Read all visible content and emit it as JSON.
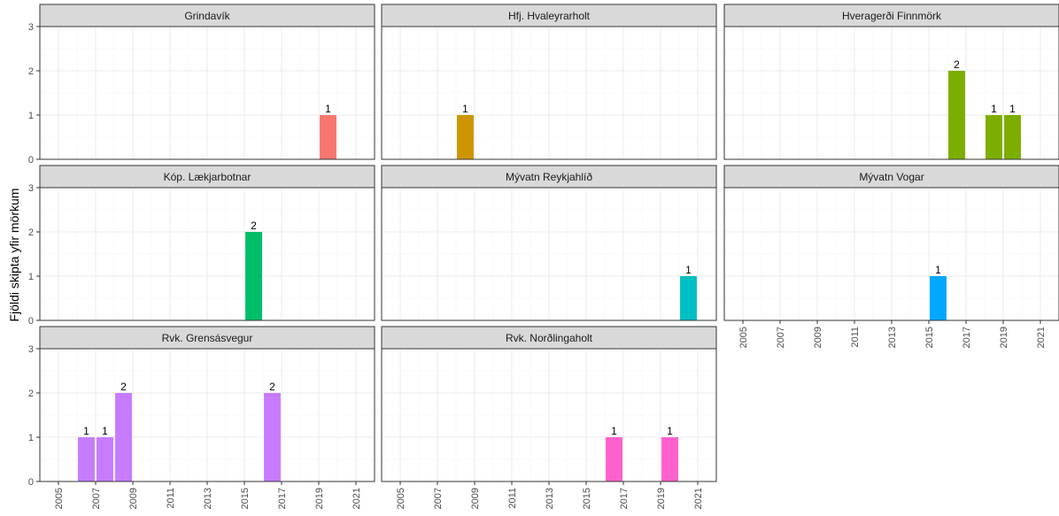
{
  "chart_data": {
    "type": "bar",
    "ylabel": "Fjöldi skipta yfir mörkum",
    "xlabel": "",
    "xlim": [
      2004,
      2022
    ],
    "ylim": [
      0,
      3
    ],
    "x_ticks": [
      "2005",
      "2007",
      "2009",
      "2011",
      "2013",
      "2015",
      "2017",
      "2019",
      "2021"
    ],
    "y_ticks": [
      "0",
      "1",
      "2",
      "3"
    ],
    "grid": true,
    "panels": [
      {
        "name": "Grindavík",
        "color": "#F8766D",
        "bars": [
          {
            "x": 2019.5,
            "value": 1,
            "label": "1"
          }
        ]
      },
      {
        "name": "Hfj. Hvaleyrarholt",
        "color": "#CD9600",
        "bars": [
          {
            "x": 2008.5,
            "value": 1,
            "label": "1"
          }
        ]
      },
      {
        "name": "Hveragerði Finnmörk",
        "color": "#7CAE00",
        "bars": [
          {
            "x": 2016.5,
            "value": 2,
            "label": "2"
          },
          {
            "x": 2018.5,
            "value": 1,
            "label": "1"
          },
          {
            "x": 2019.5,
            "value": 1,
            "label": "1"
          }
        ]
      },
      {
        "name": "Kóp. Lækjarbotnar",
        "color": "#00BE67",
        "bars": [
          {
            "x": 2015.5,
            "value": 2,
            "label": "2"
          }
        ]
      },
      {
        "name": "Mývatn Reykjahlíð",
        "color": "#00BFC4",
        "bars": [
          {
            "x": 2020.5,
            "value": 1,
            "label": "1"
          }
        ]
      },
      {
        "name": "Mývatn Vogar",
        "color": "#00A9FF",
        "bars": [
          {
            "x": 2015.5,
            "value": 1,
            "label": "1"
          }
        ]
      },
      {
        "name": "Rvk. Grensásvegur",
        "color": "#C77CFF",
        "bars": [
          {
            "x": 2006.5,
            "value": 1,
            "label": "1"
          },
          {
            "x": 2007.5,
            "value": 1,
            "label": "1"
          },
          {
            "x": 2008.5,
            "value": 2,
            "label": "2"
          },
          {
            "x": 2016.5,
            "value": 2,
            "label": "2"
          }
        ]
      },
      {
        "name": "Rvk. Norðlingaholt",
        "color": "#FF61CC",
        "bars": [
          {
            "x": 2016.5,
            "value": 1,
            "label": "1"
          },
          {
            "x": 2019.5,
            "value": 1,
            "label": "1"
          }
        ]
      }
    ]
  }
}
